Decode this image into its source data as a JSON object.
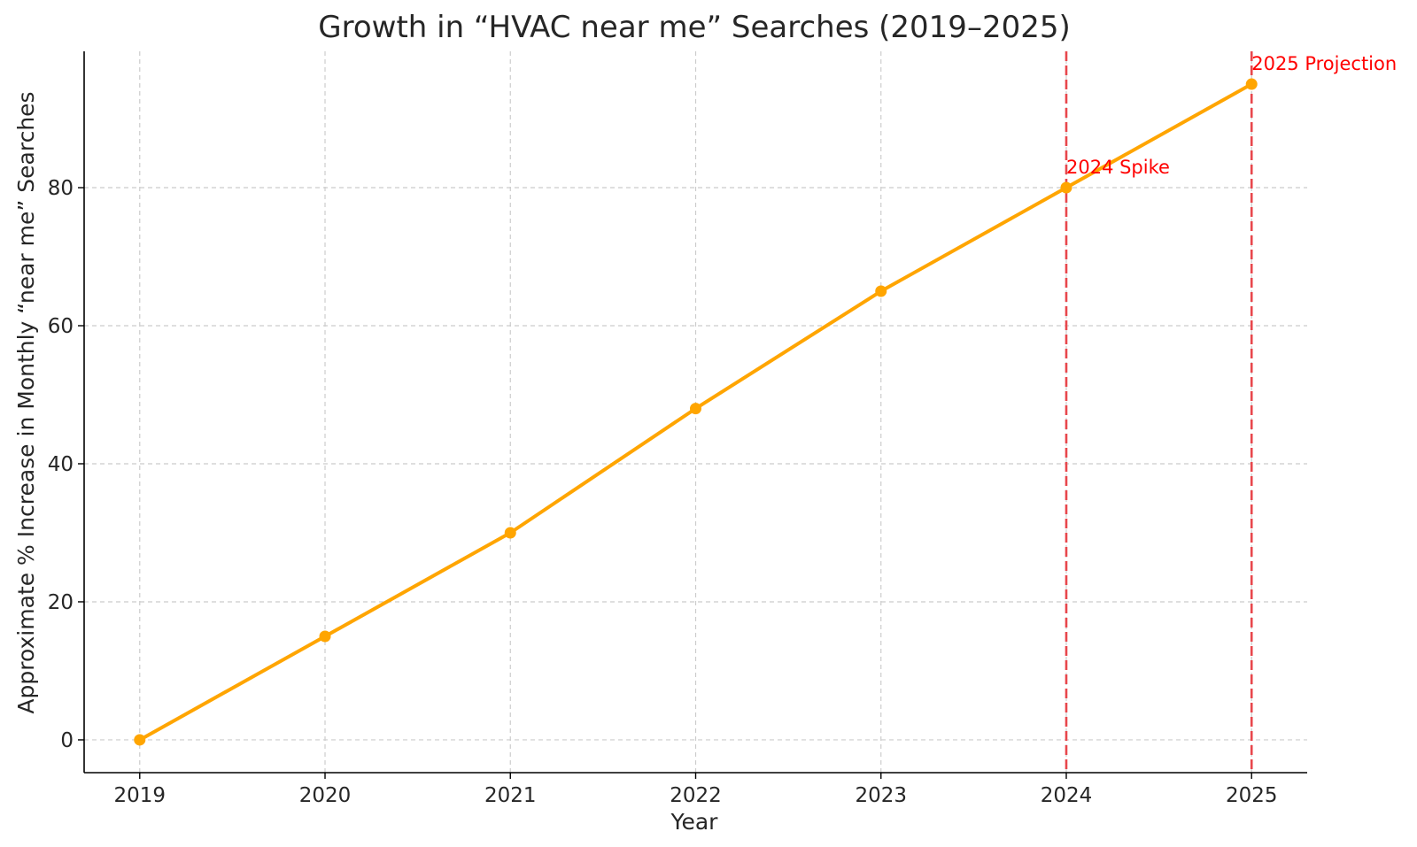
{
  "chart_data": {
    "type": "line",
    "title": "Growth in “HVAC near me” Searches (2019–2025)",
    "xlabel": "Year",
    "ylabel": "Approximate % Increase in Monthly “near me” Searches",
    "categories": [
      "2019",
      "2020",
      "2021",
      "2022",
      "2023",
      "2024",
      "2025"
    ],
    "x": [
      2019,
      2020,
      2021,
      2022,
      2023,
      2024,
      2025
    ],
    "series": [
      {
        "values": [
          0,
          15,
          30,
          48,
          65,
          80,
          95
        ],
        "color": "#FFA500",
        "marker": "circle"
      }
    ],
    "xlim": [
      2018.7,
      2025.3
    ],
    "ylim": [
      -4.75,
      99.75
    ],
    "yticks": [
      0,
      20,
      40,
      60,
      80
    ],
    "ytick_labels": [
      "0",
      "20",
      "40",
      "60",
      "80"
    ],
    "grid": true,
    "annotations": [
      {
        "text": "2024 Spike",
        "x": 2024,
        "y": 80,
        "color": "#FF0000",
        "vline": true
      },
      {
        "text": "2025 Projection",
        "x": 2025,
        "y": 95,
        "color": "#FF0000",
        "vline": true
      }
    ],
    "reference_line_color": "#E8474C"
  }
}
